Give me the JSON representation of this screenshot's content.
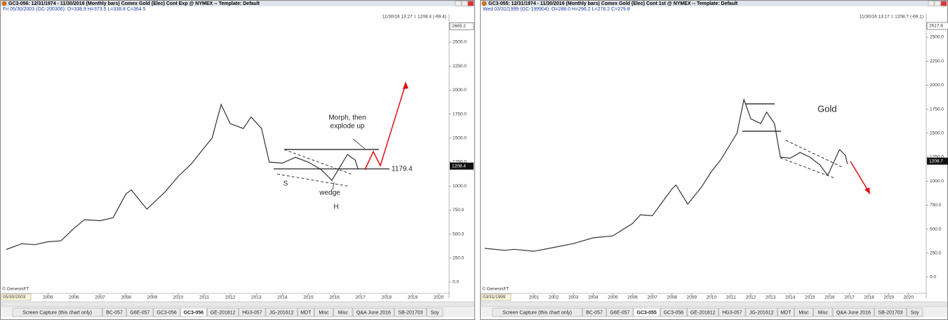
{
  "panels": [
    {
      "title": "GC3-056:  12/31/1974 - 11/30/2016  (Monthly bars)   Comex Gold (Elec) Cont Exp @ NYMEX  --  Template: Default",
      "info": "Fri  05/30/2003 (GC-200306):  O=338.9  H=373.5  L=338.8  C=364.5",
      "timestamp": "11/30/16 13:27 = 1208.4 (-69.4)",
      "date_box": "05/30/2003",
      "credit": "© GenesisFT",
      "chart": {
        "type": "line",
        "color": "#333333",
        "x": [
          2003.4,
          2004.0,
          2004.5,
          2005.0,
          2005.5,
          2006.0,
          2006.4,
          2007.0,
          2007.5,
          2008.0,
          2008.2,
          2008.8,
          2009.5,
          2010.0,
          2010.5,
          2011.0,
          2011.3,
          2011.65,
          2012.0,
          2012.5,
          2012.8,
          2013.2,
          2013.5,
          2014.0,
          2014.5,
          2015.0,
          2015.5,
          2015.9,
          2016.5,
          2016.8,
          2016.9
        ],
        "values": [
          340,
          400,
          390,
          420,
          430,
          560,
          650,
          640,
          670,
          920,
          960,
          760,
          940,
          1100,
          1230,
          1400,
          1500,
          1850,
          1650,
          1600,
          1720,
          1600,
          1250,
          1240,
          1300,
          1250,
          1170,
          1060,
          1330,
          1270,
          1180
        ],
        "xlim": [
          2003.7,
          2020.4
        ],
        "ylim": [
          -95,
          2734
        ],
        "xticks": [
          2005,
          2006,
          2007,
          2008,
          2009,
          2010,
          2011,
          2012,
          2013,
          2014,
          2015,
          2016,
          2017,
          2018,
          2019,
          2020
        ],
        "yticks": [
          {
            "value": 0,
            "label": "0.0"
          },
          {
            "value": 250,
            "label": "250.0"
          },
          {
            "value": 500,
            "label": "500.0"
          },
          {
            "value": 750,
            "label": "750.0"
          },
          {
            "value": 1000,
            "label": "1000.0"
          },
          {
            "value": 1250,
            "label": "1250.0"
          },
          {
            "value": 1500,
            "label": "1500.0"
          },
          {
            "value": 1750,
            "label": "1750.0"
          },
          {
            "value": 2000,
            "label": "2000.0"
          },
          {
            "value": 2250,
            "label": "2250.0"
          },
          {
            "value": 2500,
            "label": "2500.0"
          }
        ],
        "top_price": 2665.2,
        "last_price": 1208.4,
        "level": 1179.4,
        "annotations": [
          "Morph, then",
          "explode up",
          "S",
          "wedge",
          "H"
        ]
      },
      "tabs": [
        "Screen Capture (this chart only)",
        "BC-057",
        "G6E-057",
        "GC3-056",
        "GC3-056",
        "GE-201812",
        "HG3-057",
        "JG-201612",
        "MDT",
        "Misc",
        "Misc",
        "Q&A June 2016",
        "SB-201703",
        "Soy"
      ]
    },
    {
      "title": "GC3-055:  12/31/1974 - 11/30/2016  (Monthly bars)   Comex Gold (Elec) Cont 1st @ NYMEX  --  Template: Default",
      "info": "Wed  03/31/1999 (GC-199904):  O=288.0  H=296.2  L=278.2  C=279.8",
      "timestamp": "11/30/16 13:17 = 1208.7 (-69.1)",
      "date_box": "03/31/1999",
      "credit": "© GenesisFT",
      "chart": {
        "type": "line",
        "color": "#333333",
        "x": [
          1998.5,
          1999.5,
          2000.0,
          2001.0,
          2002.0,
          2003.0,
          2004.0,
          2005.0,
          2006.0,
          2006.4,
          2007.0,
          2008.0,
          2008.2,
          2008.8,
          2009.5,
          2010.0,
          2010.5,
          2011.0,
          2011.3,
          2011.65,
          2012.0,
          2012.5,
          2012.8,
          2013.2,
          2013.5,
          2014.0,
          2014.5,
          2015.0,
          2015.5,
          2015.9,
          2016.5,
          2016.8,
          2016.9
        ],
        "values": [
          300,
          280,
          290,
          270,
          310,
          350,
          410,
          430,
          560,
          650,
          640,
          920,
          960,
          760,
          940,
          1100,
          1230,
          1400,
          1500,
          1850,
          1650,
          1600,
          1720,
          1600,
          1250,
          1240,
          1300,
          1250,
          1170,
          1060,
          1330,
          1270,
          1180
        ],
        "xlim": [
          1998.4,
          2020.9
        ],
        "ylim": [
          -110,
          2683
        ],
        "xticks": [
          2001,
          2002,
          2003,
          2004,
          2005,
          2006,
          2007,
          2008,
          2009,
          2010,
          2011,
          2012,
          2013,
          2014,
          2015,
          2016,
          2017,
          2018,
          2019,
          2020
        ],
        "yticks": [
          {
            "value": 0,
            "label": "0.0"
          },
          {
            "value": 250,
            "label": "250.0"
          },
          {
            "value": 500,
            "label": "500.0"
          },
          {
            "value": 750,
            "label": "750.0"
          },
          {
            "value": 1000,
            "label": "1000.0"
          },
          {
            "value": 1250,
            "label": "1250.0"
          },
          {
            "value": 1500,
            "label": "1500.0"
          },
          {
            "value": 1750,
            "label": "1750.0"
          },
          {
            "value": 2000,
            "label": "2000.0"
          },
          {
            "value": 2250,
            "label": "2250.0"
          },
          {
            "value": 2500,
            "label": "2500.0"
          }
        ],
        "top_price": 2617.8,
        "last_price": 1208.7,
        "annotations": [
          "Gold"
        ]
      },
      "tabs": [
        "Screen Capture (this chart only)",
        "BC-057",
        "G6E-057",
        "GC3-055",
        "GC3-056",
        "GE-201812",
        "HG3-057",
        "JG-201612",
        "MDT",
        "Misc",
        "Misc",
        "Q&A June 2016",
        "SB-201703",
        "Soy"
      ]
    }
  ]
}
